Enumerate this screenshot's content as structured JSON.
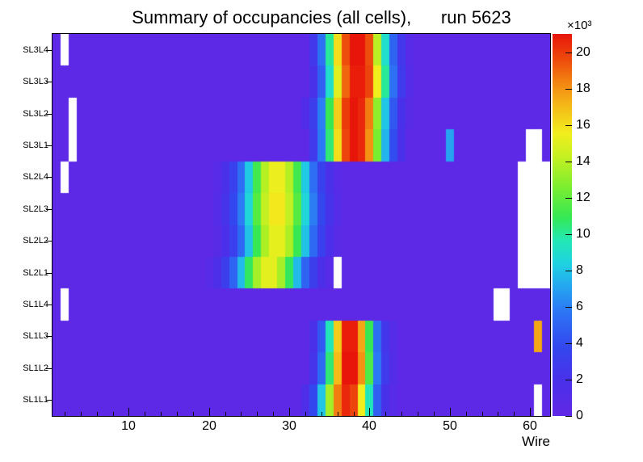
{
  "chart_data": {
    "type": "heatmap",
    "title": "Summary of occupancies (all cells),      run 5623",
    "xlabel": "Wire",
    "x_range": [
      0.5,
      62.5
    ],
    "x_ticks": [
      10,
      20,
      30,
      40,
      50,
      60
    ],
    "x_minor_step": 2,
    "rows": [
      "SL3L4",
      "SL3L3",
      "SL3L2",
      "SL3L1",
      "SL2L4",
      "SL2L3",
      "SL2L2",
      "SL2L1",
      "SL1L4",
      "SL1L3",
      "SL1L2",
      "SL1L1"
    ],
    "zmax": 21000,
    "z_scale_label": "×10³",
    "colorbar_ticks": [
      0,
      2,
      4,
      6,
      8,
      10,
      12,
      14,
      16,
      18,
      20
    ],
    "empty_color": "#ffffff",
    "palette": [
      [
        0.0,
        "#6128e6"
      ],
      [
        0.09,
        "#4a30ea"
      ],
      [
        0.18,
        "#3347ee"
      ],
      [
        0.27,
        "#2d74f5"
      ],
      [
        0.34,
        "#25a7f0"
      ],
      [
        0.4,
        "#1fd3e0"
      ],
      [
        0.46,
        "#23e8b4"
      ],
      [
        0.52,
        "#35e855"
      ],
      [
        0.6,
        "#7dee2e"
      ],
      [
        0.68,
        "#c6f021"
      ],
      [
        0.74,
        "#f2ee1d"
      ],
      [
        0.82,
        "#f5b317"
      ],
      [
        0.88,
        "#f27e11"
      ],
      [
        0.93,
        "#ee4d0c"
      ],
      [
        1.0,
        "#e8150a"
      ]
    ],
    "values": [
      [
        300,
        0,
        300,
        300,
        300,
        300,
        300,
        300,
        300,
        300,
        300,
        300,
        300,
        300,
        300,
        300,
        300,
        300,
        300,
        300,
        300,
        300,
        300,
        300,
        300,
        300,
        300,
        300,
        300,
        300,
        300,
        300,
        2500,
        5500,
        10000,
        16000,
        19500,
        21000,
        21000,
        19500,
        14000,
        9000,
        5000,
        2500,
        800,
        300,
        300,
        300,
        300,
        300,
        300,
        300,
        300,
        300,
        300,
        300,
        300,
        300,
        300,
        300,
        300,
        300
      ],
      [
        300,
        300,
        300,
        300,
        300,
        300,
        300,
        300,
        300,
        300,
        300,
        300,
        300,
        300,
        300,
        300,
        300,
        300,
        300,
        300,
        300,
        300,
        300,
        300,
        300,
        300,
        300,
        300,
        300,
        300,
        300,
        300,
        2000,
        4800,
        9000,
        15000,
        19000,
        20800,
        20800,
        19800,
        15500,
        10000,
        5500,
        2800,
        1000,
        300,
        300,
        300,
        300,
        300,
        300,
        300,
        300,
        300,
        300,
        300,
        300,
        300,
        300,
        300,
        300,
        300
      ],
      [
        300,
        300,
        0,
        300,
        300,
        300,
        300,
        300,
        300,
        300,
        300,
        300,
        300,
        300,
        300,
        300,
        300,
        300,
        300,
        300,
        300,
        300,
        300,
        300,
        300,
        300,
        300,
        300,
        300,
        300,
        300,
        1200,
        3000,
        6000,
        11000,
        16500,
        20000,
        21000,
        20500,
        18500,
        13000,
        8000,
        4500,
        2000,
        700,
        300,
        300,
        300,
        300,
        300,
        300,
        300,
        300,
        300,
        300,
        300,
        300,
        300,
        300,
        300,
        300,
        300
      ],
      [
        300,
        300,
        0,
        300,
        300,
        300,
        300,
        300,
        300,
        300,
        300,
        300,
        300,
        300,
        300,
        300,
        300,
        300,
        300,
        300,
        300,
        300,
        300,
        300,
        300,
        300,
        300,
        300,
        300,
        300,
        300,
        300,
        2600,
        5800,
        10500,
        16000,
        19800,
        21000,
        20500,
        18000,
        12500,
        7500,
        4000,
        1800,
        300,
        300,
        300,
        300,
        300,
        7000,
        300,
        300,
        300,
        300,
        300,
        300,
        300,
        300,
        300,
        0,
        0,
        300
      ],
      [
        300,
        0,
        300,
        300,
        300,
        300,
        300,
        300,
        300,
        300,
        300,
        300,
        300,
        300,
        300,
        300,
        300,
        300,
        300,
        300,
        800,
        1800,
        3300,
        5400,
        8100,
        11200,
        13900,
        15400,
        15400,
        13900,
        11200,
        8100,
        5400,
        3300,
        1800,
        800,
        300,
        300,
        300,
        300,
        300,
        300,
        300,
        300,
        300,
        300,
        300,
        300,
        300,
        300,
        300,
        300,
        300,
        300,
        300,
        300,
        300,
        300,
        0,
        0,
        0,
        0
      ],
      [
        300,
        300,
        300,
        300,
        300,
        300,
        300,
        300,
        300,
        300,
        300,
        300,
        300,
        300,
        300,
        300,
        300,
        300,
        300,
        300,
        1000,
        2100,
        3700,
        5900,
        8600,
        11700,
        14200,
        15700,
        15700,
        14200,
        11700,
        8600,
        5900,
        3700,
        2100,
        1000,
        300,
        300,
        300,
        300,
        300,
        300,
        300,
        300,
        300,
        300,
        300,
        300,
        300,
        300,
        300,
        300,
        300,
        300,
        300,
        300,
        300,
        300,
        0,
        0,
        0,
        0
      ],
      [
        300,
        300,
        300,
        300,
        300,
        300,
        300,
        300,
        300,
        300,
        300,
        300,
        300,
        300,
        300,
        300,
        300,
        300,
        300,
        300,
        700,
        1700,
        3200,
        5200,
        7900,
        11000,
        13700,
        15200,
        15200,
        13700,
        11000,
        7900,
        5200,
        3200,
        1700,
        700,
        300,
        300,
        300,
        300,
        300,
        300,
        300,
        300,
        300,
        300,
        300,
        300,
        300,
        300,
        300,
        300,
        300,
        300,
        300,
        300,
        300,
        300,
        0,
        0,
        0,
        0
      ],
      [
        300,
        300,
        300,
        300,
        300,
        300,
        300,
        300,
        300,
        300,
        300,
        300,
        300,
        300,
        300,
        300,
        300,
        300,
        300,
        800,
        1600,
        3000,
        5000,
        7700,
        10800,
        13500,
        15100,
        15100,
        13500,
        10800,
        7700,
        5000,
        3000,
        1600,
        800,
        0,
        300,
        300,
        300,
        300,
        300,
        300,
        300,
        300,
        300,
        300,
        300,
        300,
        300,
        300,
        300,
        300,
        300,
        300,
        300,
        300,
        300,
        300,
        0,
        0,
        0,
        0
      ],
      [
        300,
        0,
        300,
        300,
        300,
        300,
        300,
        300,
        300,
        300,
        300,
        300,
        300,
        300,
        300,
        300,
        300,
        300,
        300,
        300,
        300,
        300,
        300,
        300,
        300,
        300,
        300,
        300,
        300,
        300,
        300,
        300,
        300,
        300,
        300,
        300,
        300,
        300,
        300,
        300,
        300,
        300,
        300,
        300,
        300,
        300,
        300,
        300,
        300,
        300,
        300,
        300,
        300,
        300,
        300,
        0,
        0,
        300,
        300,
        300,
        300,
        300
      ],
      [
        300,
        300,
        300,
        300,
        300,
        300,
        300,
        300,
        300,
        300,
        300,
        300,
        300,
        300,
        300,
        300,
        300,
        300,
        300,
        300,
        300,
        300,
        300,
        300,
        300,
        300,
        300,
        300,
        300,
        300,
        300,
        300,
        1800,
        4500,
        9500,
        16500,
        20800,
        20800,
        17500,
        11000,
        5500,
        2400,
        1000,
        300,
        300,
        300,
        300,
        300,
        300,
        300,
        300,
        300,
        300,
        300,
        300,
        300,
        300,
        300,
        300,
        300,
        17500,
        300
      ],
      [
        300,
        300,
        300,
        300,
        300,
        300,
        300,
        300,
        300,
        300,
        300,
        300,
        300,
        300,
        300,
        300,
        300,
        300,
        300,
        300,
        300,
        300,
        300,
        300,
        300,
        300,
        300,
        300,
        300,
        300,
        300,
        300,
        2200,
        5200,
        10500,
        17000,
        21000,
        21000,
        18000,
        11500,
        5800,
        2600,
        1100,
        300,
        300,
        300,
        300,
        300,
        300,
        300,
        300,
        300,
        300,
        300,
        300,
        300,
        300,
        300,
        300,
        300,
        300,
        300
      ],
      [
        300,
        300,
        300,
        300,
        300,
        300,
        300,
        300,
        300,
        300,
        300,
        300,
        300,
        300,
        300,
        300,
        300,
        300,
        300,
        300,
        300,
        300,
        300,
        300,
        300,
        300,
        300,
        300,
        300,
        300,
        300,
        1500,
        3800,
        8000,
        13500,
        18500,
        20500,
        19800,
        15500,
        9500,
        4800,
        2000,
        800,
        300,
        300,
        300,
        300,
        300,
        300,
        300,
        300,
        300,
        300,
        300,
        300,
        300,
        300,
        300,
        300,
        300,
        0,
        300
      ]
    ]
  }
}
